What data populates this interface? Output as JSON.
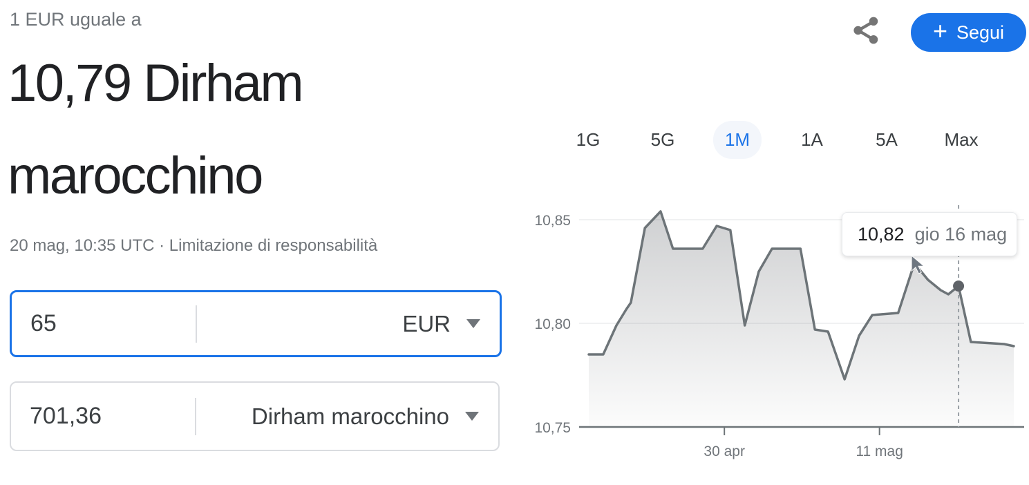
{
  "theme": {
    "accent": "#1a73e8"
  },
  "header": {
    "subtitle": "1 EUR uguale a",
    "title_line1": "10,79 Dirham",
    "title_line2": "marocchino",
    "meta": "20 mag, 10:35 UTC ·",
    "disclaimer": "Limitazione di responsabilità"
  },
  "actions": {
    "share_icon": "share-icon",
    "follow": {
      "plus": "+",
      "label": "Segui",
      "color": "#1a73e8"
    }
  },
  "converter": {
    "from": {
      "amount": "65",
      "currency": "EUR"
    },
    "to": {
      "amount": "701,36",
      "currency": "Dirham marocchino"
    }
  },
  "chart": {
    "ranges": [
      {
        "label": "1G",
        "selected": false
      },
      {
        "label": "5G",
        "selected": false
      },
      {
        "label": "1M",
        "selected": true
      },
      {
        "label": "1A",
        "selected": false
      },
      {
        "label": "5A",
        "selected": false
      },
      {
        "label": "Max",
        "selected": false
      }
    ]
  },
  "chart_data": {
    "type": "area",
    "title": "",
    "xlabel": "",
    "ylabel": "",
    "ylim": [
      10.75,
      10.857
    ],
    "yticks": [
      {
        "value": 10.85,
        "label": "10,85"
      },
      {
        "value": 10.8,
        "label": "10,80"
      },
      {
        "value": 10.75,
        "label": "10,75"
      }
    ],
    "xticks": [
      {
        "frac": 0.319,
        "label": "30 apr"
      },
      {
        "frac": 0.684,
        "label": "11 mag"
      }
    ],
    "points": [
      [
        0.0,
        10.785
      ],
      [
        0.034,
        10.785
      ],
      [
        0.065,
        10.799
      ],
      [
        0.089,
        10.807
      ],
      [
        0.099,
        10.81
      ],
      [
        0.132,
        10.846
      ],
      [
        0.169,
        10.854
      ],
      [
        0.198,
        10.836
      ],
      [
        0.268,
        10.836
      ],
      [
        0.301,
        10.847
      ],
      [
        0.333,
        10.845
      ],
      [
        0.367,
        10.799
      ],
      [
        0.4,
        10.825
      ],
      [
        0.431,
        10.836
      ],
      [
        0.498,
        10.836
      ],
      [
        0.532,
        10.797
      ],
      [
        0.563,
        10.796
      ],
      [
        0.602,
        10.773
      ],
      [
        0.636,
        10.794
      ],
      [
        0.667,
        10.804
      ],
      [
        0.728,
        10.805
      ],
      [
        0.766,
        10.829
      ],
      [
        0.798,
        10.821
      ],
      [
        0.828,
        10.816
      ],
      [
        0.846,
        10.814
      ],
      [
        0.87,
        10.818
      ],
      [
        0.899,
        10.791
      ],
      [
        0.977,
        10.79
      ],
      [
        1.0,
        10.789
      ]
    ],
    "highlight": {
      "frac": 0.87,
      "value": 10.818,
      "tooltip_value": "10,82",
      "tooltip_date": "gio 16 mag"
    },
    "grid": "horizontal",
    "legend": "none",
    "colors": {
      "line": "#6d7478",
      "fill": "#5f6368",
      "grid": "#f0f1f2",
      "axis": "#6d7478",
      "labels": "#70757a",
      "crosshair": "#9aa0a6",
      "dot": "#5f6368"
    }
  }
}
